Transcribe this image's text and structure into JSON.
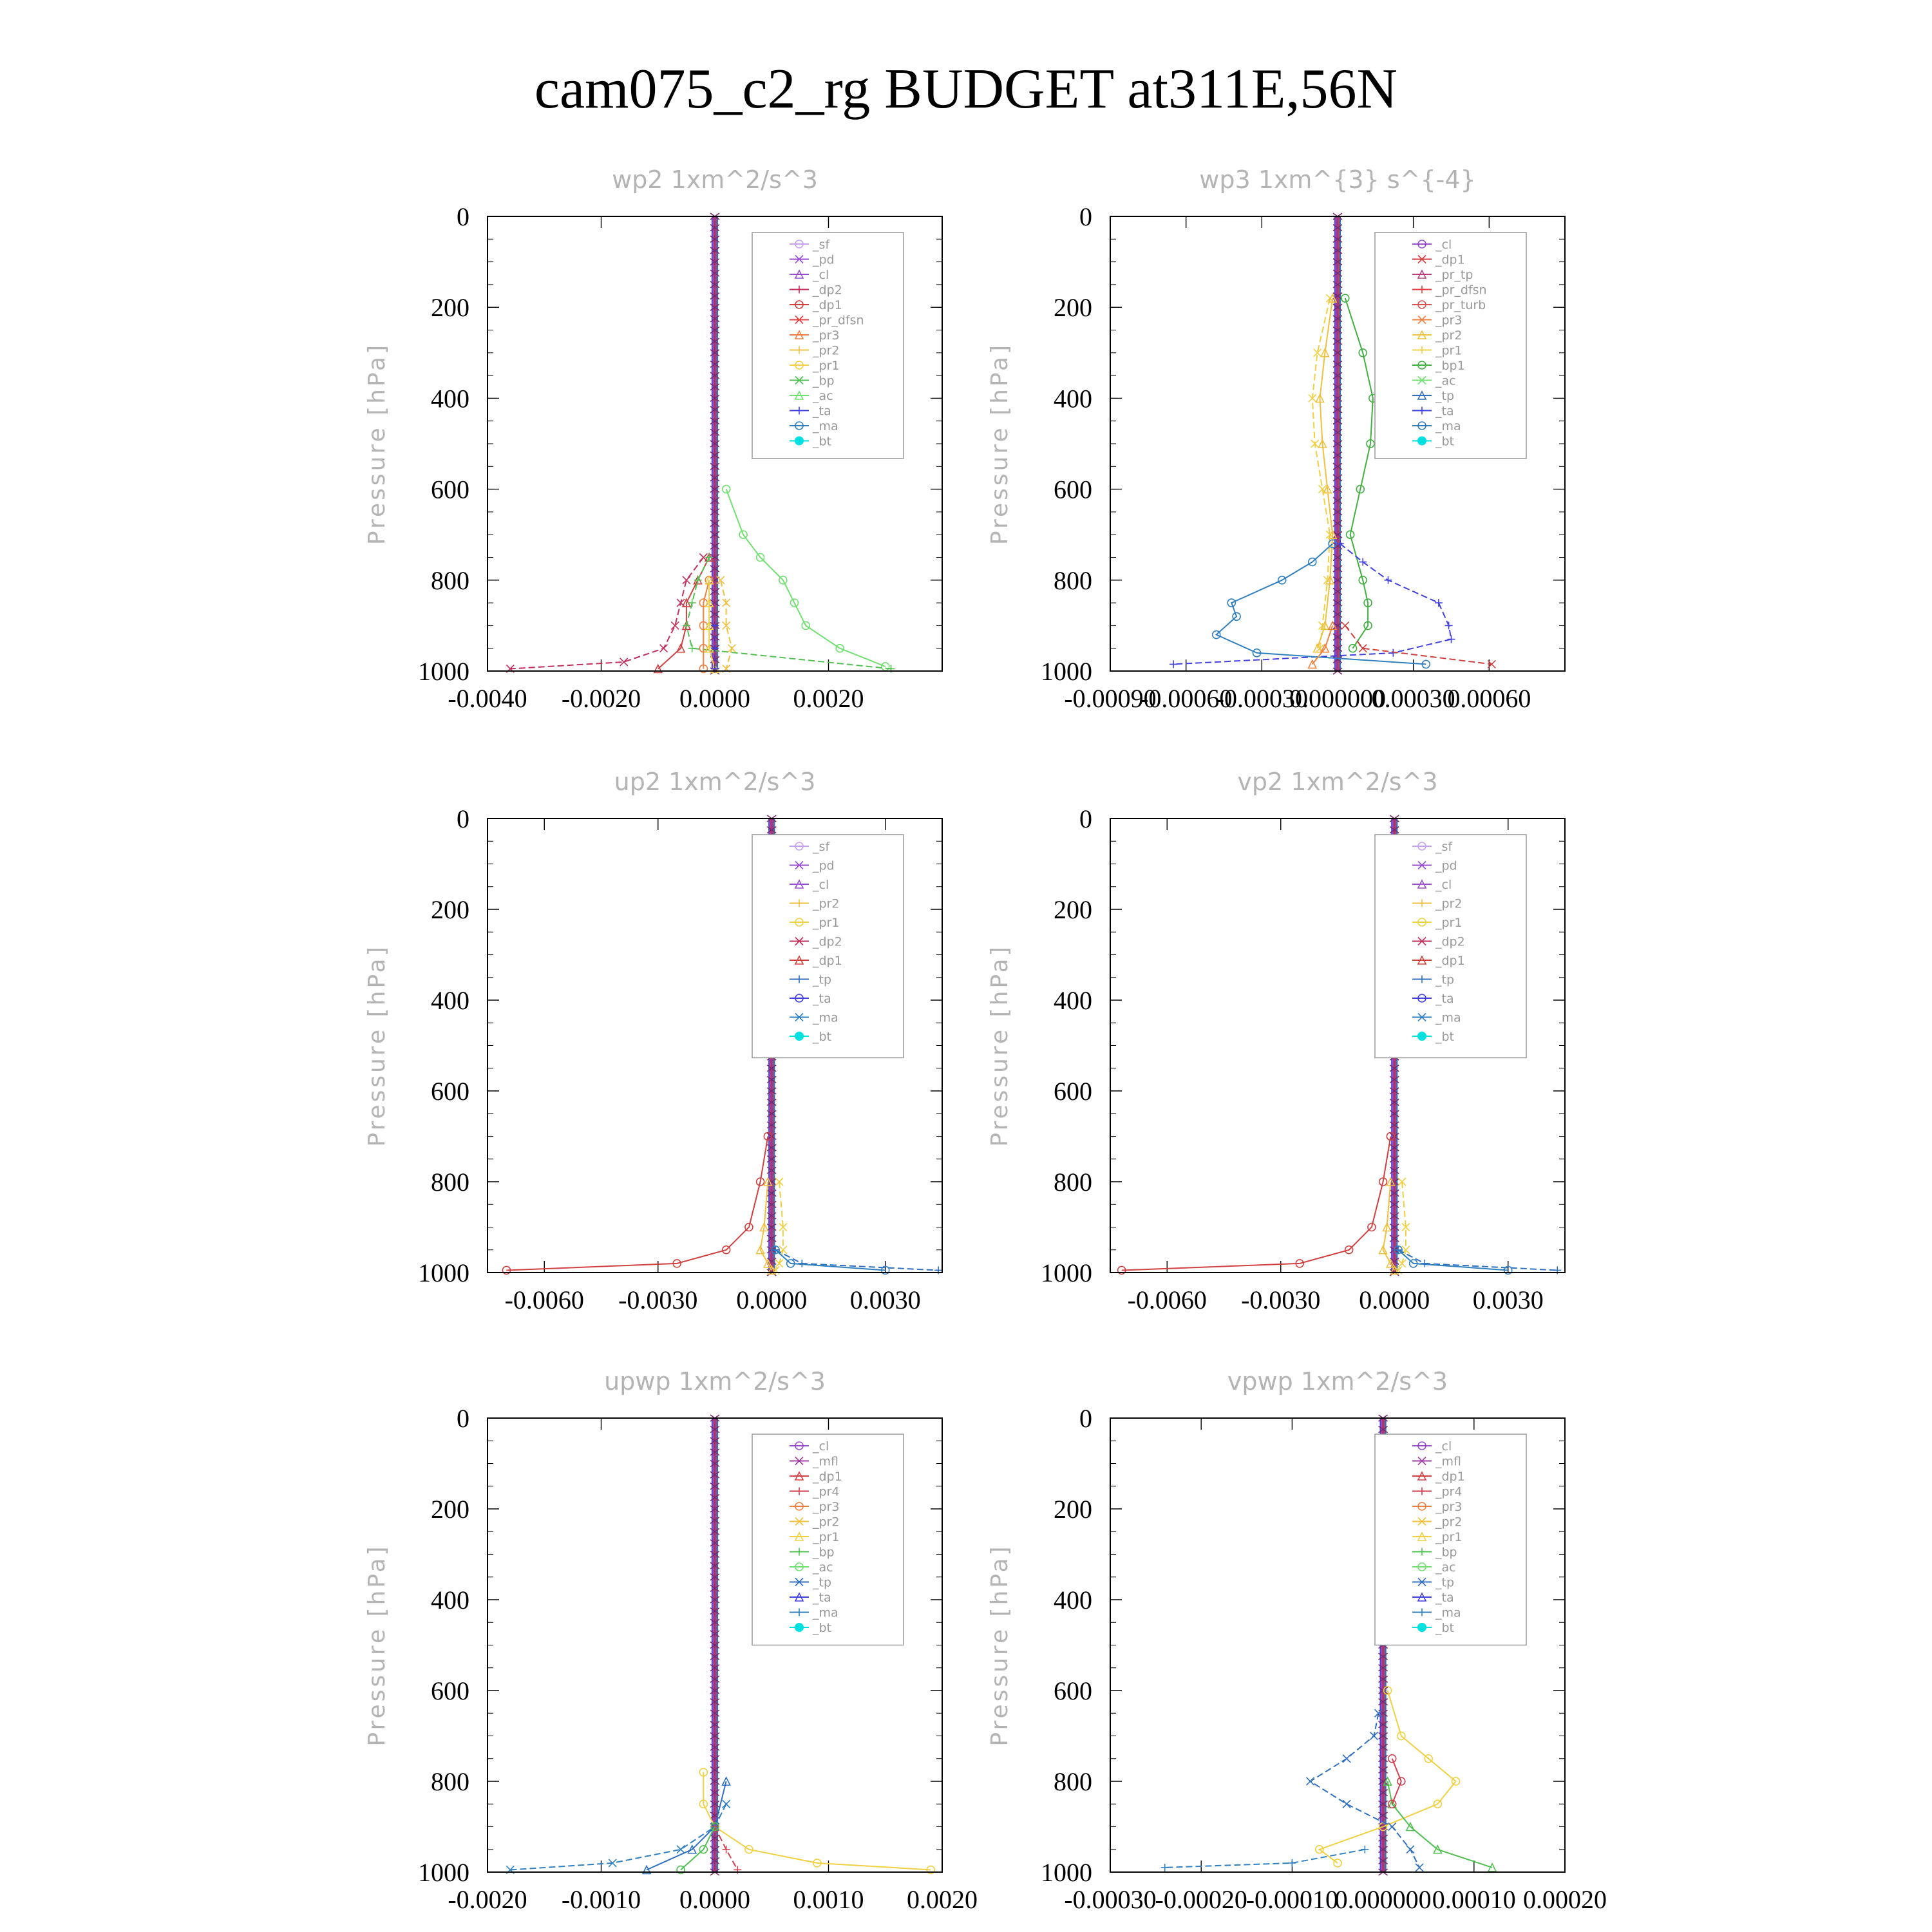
{
  "title": "cam075_c2_rg  BUDGET at311E,56N",
  "colors": {
    "_sf": "#c9a0f0",
    "_pd": "#9a4fd0",
    "_cl": "#9a4fd0",
    "_dp2": "#c0305a",
    "_dp1": "#d04040",
    "_pr_dfsn": "#e04040",
    "_pr3": "#f08040",
    "_pr2": "#f0c040",
    "_pr1": "#f0d040",
    "_bp": "#50c050",
    "_ac": "#70e070",
    "_ta": "#4040e0",
    "_ma": "#3080c0",
    "_bt": "#00e0e0",
    "_tp": "#3070c0",
    "_bp1": "#40b040",
    "_mfl": "#a040a0",
    "_pr4": "#d04050",
    "_pr_tp": "#c04080",
    "_pr_turb": "#e05050"
  },
  "chart_data": [
    {
      "type": "line",
      "title": "wp2   1xm^2/s^3",
      "ylabel": "Pressure  [hPa]",
      "ylim": [
        1000,
        0
      ],
      "yticks": [
        "0",
        "200",
        "400",
        "600",
        "800",
        "1000"
      ],
      "xlim": [
        -0.004,
        0.004
      ],
      "xticks": [
        {
          "v": -0.004,
          "label": "-0.0040"
        },
        {
          "v": -0.002,
          "label": "-0.0020"
        },
        {
          "v": 0,
          "label": "0.0000"
        },
        {
          "v": 0.002,
          "label": "0.0020"
        }
      ],
      "legend": [
        "_sf",
        "_pd",
        "_cl",
        "_dp2",
        "_dp1",
        "_pr_dfsn",
        "_pr3",
        "_pr2",
        "_pr1",
        "_bp",
        "_ac",
        "_ta",
        "_ma",
        "_bt"
      ],
      "series": [
        {
          "name": "_ac",
          "p": [
            600,
            700,
            750,
            800,
            850,
            900,
            950,
            990
          ],
          "x": [
            0.0002,
            0.0005,
            0.0008,
            0.0012,
            0.0014,
            0.0016,
            0.0022,
            0.003
          ]
        },
        {
          "name": "_dp2",
          "p": [
            750,
            800,
            850,
            900,
            950,
            980,
            995
          ],
          "x": [
            -0.0002,
            -0.0005,
            -0.0006,
            -0.0007,
            -0.0009,
            -0.0016,
            -0.0036
          ]
        },
        {
          "name": "_dp1",
          "p": [
            750,
            800,
            850,
            900,
            950,
            995
          ],
          "x": [
            -0.0001,
            -0.0003,
            -0.0005,
            -0.0005,
            -0.0006,
            -0.001
          ]
        },
        {
          "name": "_bp",
          "p": [
            750,
            800,
            850,
            900,
            950,
            995
          ],
          "x": [
            -0.0001,
            -0.0003,
            -0.0004,
            -0.0005,
            -0.0004,
            0.0031
          ]
        },
        {
          "name": "_pr3",
          "p": [
            800,
            850,
            900,
            950,
            995
          ],
          "x": [
            -0.0001,
            -0.0002,
            -0.0002,
            -0.0002,
            -0.0002
          ]
        },
        {
          "name": "_pr2",
          "p": [
            800,
            850,
            900,
            950,
            995
          ],
          "x": [
            0.0001,
            0.0002,
            0.0002,
            0.0003,
            0.0002
          ]
        },
        {
          "name": "_pr1",
          "p": [
            800,
            850,
            900,
            950,
            995
          ],
          "x": [
            -0.0001,
            -0.0001,
            -0.0001,
            -0.0001,
            0.0
          ]
        },
        {
          "name": "_ta",
          "p": [
            900,
            950,
            995
          ],
          "x": [
            0.0,
            0.0,
            0.0
          ]
        }
      ]
    },
    {
      "type": "line",
      "title": "wp3   1xm^{3} s^{-4}",
      "ylabel": "Pressure  [hPa]",
      "ylim": [
        1000,
        0
      ],
      "yticks": [
        "0",
        "200",
        "400",
        "600",
        "800",
        "1000"
      ],
      "xlim": [
        -0.0009,
        0.0009
      ],
      "xticks": [
        {
          "v": -0.0009,
          "label": "-0.00090"
        },
        {
          "v": -0.0006,
          "label": "-0.00060"
        },
        {
          "v": -0.0003,
          "label": "-0.00030"
        },
        {
          "v": 0,
          "label": "0.000000"
        },
        {
          "v": 0.0003,
          "label": "0.00030"
        },
        {
          "v": 0.0006,
          "label": "0.00060"
        }
      ],
      "legend": [
        "_cl",
        "_dp1",
        "_pr_tp",
        "_pr_dfsn",
        "_pr_turb",
        "_pr3",
        "_pr2",
        "_pr1",
        "_bp1",
        "_ac",
        "_tp",
        "_ta",
        "_ma",
        "_bt"
      ],
      "series": [
        {
          "name": "_bp1",
          "p": [
            180,
            300,
            400,
            500,
            600,
            700,
            800,
            850,
            900,
            950
          ],
          "x": [
            3e-05,
            0.0001,
            0.00014,
            0.00013,
            9e-05,
            5e-05,
            0.0001,
            0.00012,
            0.00012,
            6e-05
          ]
        },
        {
          "name": "_pr1",
          "p": [
            180,
            300,
            400,
            500,
            600,
            700,
            800,
            900,
            950
          ],
          "x": [
            -3e-05,
            -8e-05,
            -0.0001,
            -9e-05,
            -6e-05,
            -3e-05,
            -4e-05,
            -6e-05,
            -7e-05
          ]
        },
        {
          "name": "_pr2",
          "p": [
            180,
            300,
            400,
            500,
            600,
            700,
            800,
            900,
            950
          ],
          "x": [
            -2e-05,
            -5e-05,
            -7e-05,
            -6e-05,
            -4e-05,
            -2e-05,
            -3e-05,
            -5e-05,
            -8e-05
          ]
        },
        {
          "name": "_ta",
          "p": [
            720,
            760,
            800,
            850,
            900,
            930,
            960,
            985
          ],
          "x": [
            1e-05,
            0.0001,
            0.0002,
            0.0004,
            0.00044,
            0.00045,
            0.00022,
            -0.00065
          ]
        },
        {
          "name": "_ma",
          "p": [
            720,
            760,
            800,
            850,
            880,
            920,
            960,
            985
          ],
          "x": [
            -2e-05,
            -0.0001,
            -0.00022,
            -0.00042,
            -0.0004,
            -0.00048,
            -0.00032,
            0.00035
          ]
        },
        {
          "name": "_dp1",
          "p": [
            900,
            950,
            985
          ],
          "x": [
            3e-05,
            0.0001,
            0.00061
          ]
        },
        {
          "name": "_pr3",
          "p": [
            900,
            950,
            985
          ],
          "x": [
            -2e-05,
            -5e-05,
            -0.0001
          ]
        }
      ]
    },
    {
      "type": "line",
      "title": "up2   1xm^2/s^3",
      "ylabel": "Pressure  [hPa]",
      "ylim": [
        1000,
        0
      ],
      "yticks": [
        "0",
        "200",
        "400",
        "600",
        "800",
        "1000"
      ],
      "xlim": [
        -0.0075,
        0.0045
      ],
      "xticks": [
        {
          "v": -0.006,
          "label": "-0.0060"
        },
        {
          "v": -0.003,
          "label": "-0.0030"
        },
        {
          "v": 0,
          "label": "0.0000"
        },
        {
          "v": 0.003,
          "label": "0.0030"
        }
      ],
      "legend": [
        "_sf",
        "_pd",
        "_cl",
        "_pr2",
        "_pr1",
        "_dp2",
        "_dp1",
        "_tp",
        "_ta",
        "_ma",
        "_bt"
      ],
      "series": [
        {
          "name": "_dp1",
          "p": [
            700,
            800,
            900,
            950,
            980,
            995
          ],
          "x": [
            -0.0001,
            -0.0003,
            -0.0006,
            -0.0012,
            -0.0025,
            -0.007
          ]
        },
        {
          "name": "_pr1",
          "p": [
            800,
            900,
            950,
            980,
            995
          ],
          "x": [
            0.0002,
            0.0003,
            0.0003,
            0.0002,
            0.0001
          ]
        },
        {
          "name": "_pr2",
          "p": [
            800,
            900,
            950,
            980,
            995
          ],
          "x": [
            -0.0001,
            -0.0002,
            -0.0003,
            -0.0001,
            0.0
          ]
        },
        {
          "name": "_tp",
          "p": [
            950,
            980,
            995
          ],
          "x": [
            0.0001,
            0.0008,
            0.0044
          ]
        },
        {
          "name": "_ma",
          "p": [
            950,
            980,
            995
          ],
          "x": [
            0.0001,
            0.0005,
            0.003
          ]
        }
      ]
    },
    {
      "type": "line",
      "title": "vp2   1xm^2/s^3",
      "ylabel": "Pressure  [hPa]",
      "ylim": [
        1000,
        0
      ],
      "yticks": [
        "0",
        "200",
        "400",
        "600",
        "800",
        "1000"
      ],
      "xlim": [
        -0.0075,
        0.0045
      ],
      "xticks": [
        {
          "v": -0.006,
          "label": "-0.0060"
        },
        {
          "v": -0.003,
          "label": "-0.0030"
        },
        {
          "v": 0,
          "label": "0.0000"
        },
        {
          "v": 0.003,
          "label": "0.0030"
        }
      ],
      "legend": [
        "_sf",
        "_pd",
        "_cl",
        "_pr2",
        "_pr1",
        "_dp2",
        "_dp1",
        "_tp",
        "_ta",
        "_ma",
        "_bt"
      ],
      "series": [
        {
          "name": "_dp1",
          "p": [
            700,
            800,
            900,
            950,
            980,
            995
          ],
          "x": [
            -0.0001,
            -0.0003,
            -0.0006,
            -0.0012,
            -0.0025,
            -0.0072
          ]
        },
        {
          "name": "_pr1",
          "p": [
            800,
            900,
            950,
            980,
            995
          ],
          "x": [
            0.0002,
            0.0003,
            0.0003,
            0.0002,
            0.0001
          ]
        },
        {
          "name": "_pr2",
          "p": [
            800,
            900,
            950,
            980,
            995
          ],
          "x": [
            -0.0001,
            -0.0002,
            -0.0003,
            -0.0001,
            0.0
          ]
        },
        {
          "name": "_tp",
          "p": [
            950,
            980,
            995
          ],
          "x": [
            0.0001,
            0.0008,
            0.0043
          ]
        },
        {
          "name": "_ma",
          "p": [
            950,
            980,
            995
          ],
          "x": [
            0.0001,
            0.0005,
            0.003
          ]
        }
      ]
    },
    {
      "type": "line",
      "title": "upwp   1xm^2/s^3",
      "ylabel": "Pressure  [hPa]",
      "ylim": [
        1000,
        0
      ],
      "yticks": [
        "0",
        "200",
        "400",
        "600",
        "800",
        "1000"
      ],
      "xlim": [
        -0.002,
        0.002
      ],
      "xticks": [
        {
          "v": -0.002,
          "label": "-0.0020"
        },
        {
          "v": -0.001,
          "label": "-0.0010"
        },
        {
          "v": 0,
          "label": "0.0000"
        },
        {
          "v": 0.001,
          "label": "0.0010"
        },
        {
          "v": 0.002,
          "label": "0.0020"
        }
      ],
      "legend": [
        "_cl",
        "_mfl",
        "_dp1",
        "_pr4",
        "_pr3",
        "_pr2",
        "_pr1",
        "_bp",
        "_ac",
        "_tp",
        "_ta",
        "_ma",
        "_bt"
      ],
      "series": [
        {
          "name": "_pr1",
          "p": [
            780,
            850,
            900,
            950,
            980,
            995
          ],
          "x": [
            -0.0001,
            -0.0001,
            0.0,
            0.0003,
            0.0009,
            0.0019
          ]
        },
        {
          "name": "_ma",
          "p": [
            850,
            900,
            950,
            980,
            995
          ],
          "x": [
            0.0001,
            0.0,
            -0.0003,
            -0.0009,
            -0.0018
          ]
        },
        {
          "name": "_tp",
          "p": [
            800,
            900,
            950,
            995
          ],
          "x": [
            0.0001,
            0.0,
            -0.0002,
            -0.0006
          ]
        },
        {
          "name": "_pr4",
          "p": [
            900,
            950,
            995
          ],
          "x": [
            0.0,
            0.0001,
            0.0002
          ]
        },
        {
          "name": "_bp",
          "p": [
            900,
            950,
            995
          ],
          "x": [
            0.0,
            -0.0001,
            -0.0003
          ]
        }
      ]
    },
    {
      "type": "line",
      "title": "vpwp   1xm^2/s^3",
      "ylabel": "Pressure  [hPa]",
      "ylim": [
        1000,
        0
      ],
      "yticks": [
        "0",
        "200",
        "400",
        "600",
        "800",
        "1000"
      ],
      "xlim": [
        -0.0003,
        0.0002
      ],
      "xticks": [
        {
          "v": -0.0003,
          "label": "-0.00030"
        },
        {
          "v": -0.0002,
          "label": "-0.00020"
        },
        {
          "v": -0.0001,
          "label": "-0.00010"
        },
        {
          "v": 0,
          "label": "0.000000"
        },
        {
          "v": 0.0001,
          "label": "0.00010"
        },
        {
          "v": 0.0002,
          "label": "0.00020"
        }
      ],
      "legend": [
        "_cl",
        "_mfl",
        "_dp1",
        "_pr4",
        "_pr3",
        "_pr2",
        "_pr1",
        "_bp",
        "_ac",
        "_tp",
        "_ta",
        "_ma",
        "_bt"
      ],
      "series": [
        {
          "name": "_pr1",
          "p": [
            600,
            700,
            750,
            800,
            850,
            900,
            950,
            980
          ],
          "x": [
            5e-06,
            2e-05,
            5e-05,
            8e-05,
            6e-05,
            0.0,
            -7e-05,
            -5e-05
          ]
        },
        {
          "name": "_tp",
          "p": [
            650,
            700,
            750,
            800,
            850,
            900,
            950,
            990
          ],
          "x": [
            -5e-06,
            -1e-05,
            -4e-05,
            -8e-05,
            -4e-05,
            1e-05,
            3e-05,
            4e-05
          ]
        },
        {
          "name": "_bp",
          "p": [
            800,
            850,
            900,
            950,
            990
          ],
          "x": [
            5e-06,
            1e-05,
            3e-05,
            6e-05,
            0.00012
          ]
        },
        {
          "name": "_ma",
          "p": [
            950,
            980,
            990
          ],
          "x": [
            -2e-05,
            -0.0001,
            -0.00024
          ]
        },
        {
          "name": "_pr4",
          "p": [
            750,
            800,
            850
          ],
          "x": [
            1e-05,
            2e-05,
            1e-05
          ]
        }
      ]
    }
  ]
}
